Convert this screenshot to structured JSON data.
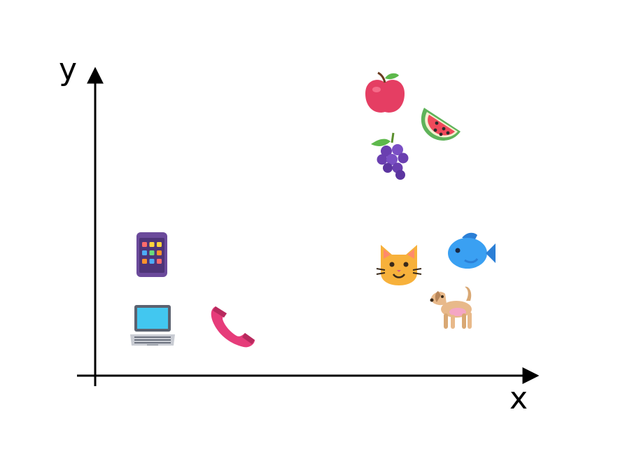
{
  "axes": {
    "x_label": "x",
    "y_label": "y"
  },
  "items": [
    {
      "icon": "apple-icon",
      "group": "fruit"
    },
    {
      "icon": "watermelon-icon",
      "group": "fruit"
    },
    {
      "icon": "grapes-icon",
      "group": "fruit"
    },
    {
      "icon": "mobile-phone-icon",
      "group": "device"
    },
    {
      "icon": "laptop-icon",
      "group": "device"
    },
    {
      "icon": "telephone-receiver-icon",
      "group": "device"
    },
    {
      "icon": "cat-face-icon",
      "group": "animal"
    },
    {
      "icon": "fish-icon",
      "group": "animal"
    },
    {
      "icon": "dog-icon",
      "group": "animal"
    }
  ],
  "colors": {
    "axis": "#000000",
    "apple": "#e53e63",
    "watermelon_rind": "#5fb35a",
    "watermelon_flesh": "#ef4a5b",
    "grapes": "#6a3fb0",
    "phone_body": "#6b4a9b",
    "laptop_screen": "#42c7f0",
    "receiver": "#e63c7a",
    "cat": "#f7b13b",
    "fish": "#3aa0f2",
    "dog": "#e8b98a"
  }
}
